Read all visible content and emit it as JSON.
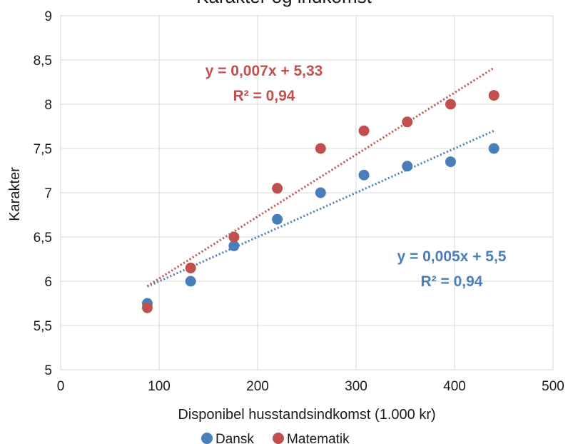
{
  "chart_data": {
    "type": "scatter",
    "title": "Karakter og indkomst",
    "xlabel": "Disponibel husstandsindkomst (1.000 kr)",
    "ylabel": "Karakter",
    "xlim": [
      0,
      500
    ],
    "ylim": [
      5,
      9
    ],
    "x_ticks": [
      "0",
      "100",
      "200",
      "300",
      "400",
      "500"
    ],
    "y_ticks": [
      "5",
      "5,5",
      "6",
      "6,5",
      "7",
      "7,5",
      "8",
      "8,5",
      "9"
    ],
    "grid": true,
    "legend_placement": "bottom",
    "series": [
      {
        "name": "Dansk",
        "color": "#4a7ebb",
        "x": [
          88,
          132,
          176,
          220,
          264,
          308,
          352,
          396,
          440
        ],
        "y": [
          5.75,
          6.0,
          6.4,
          6.7,
          7.0,
          7.2,
          7.3,
          7.35,
          7.5
        ],
        "trendline": {
          "slope": 0.005,
          "intercept": 5.5,
          "x_range": [
            88,
            440
          ]
        },
        "equation": "y = 0,005x + 5,5",
        "r2": "R² = 0,94"
      },
      {
        "name": "Matematik",
        "color": "#c0504d",
        "x": [
          88,
          132,
          176,
          220,
          264,
          308,
          352,
          396,
          440
        ],
        "y": [
          5.7,
          6.15,
          6.5,
          7.05,
          7.5,
          7.7,
          7.8,
          8.0,
          8.1
        ],
        "trendline": {
          "slope": 0.007,
          "intercept": 5.33,
          "x_range": [
            88,
            440
          ]
        },
        "equation": "y = 0,007x + 5,33",
        "r2": "R² = 0,94"
      }
    ]
  }
}
